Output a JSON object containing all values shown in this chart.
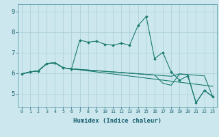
{
  "xlabel": "Humidex (Indice chaleur)",
  "bg_color": "#cce8ee",
  "grid_color": "#aacdd6",
  "line_color": "#1a7a6e",
  "x_ticks": [
    0,
    1,
    2,
    3,
    4,
    5,
    6,
    7,
    8,
    9,
    10,
    11,
    12,
    13,
    14,
    15,
    16,
    17,
    18,
    19,
    20,
    21,
    22,
    23
  ],
  "y_ticks": [
    5,
    6,
    7,
    8,
    9
  ],
  "xlim": [
    -0.5,
    23.5
  ],
  "ylim": [
    4.35,
    9.35
  ],
  "series_main": [
    5.95,
    6.05,
    6.1,
    6.45,
    6.5,
    6.25,
    6.2,
    7.6,
    7.5,
    7.55,
    7.4,
    7.35,
    7.45,
    7.35,
    8.3,
    8.75,
    6.7,
    7.0,
    6.05,
    5.65,
    5.85,
    4.55,
    5.15,
    4.85
  ],
  "series_line1": [
    5.95,
    6.05,
    6.1,
    6.45,
    6.5,
    6.25,
    6.2,
    6.15,
    6.1,
    6.05,
    6.0,
    5.95,
    5.9,
    5.85,
    5.8,
    5.75,
    5.7,
    5.65,
    5.6,
    5.55,
    5.5,
    5.45,
    5.4,
    5.35
  ],
  "series_line2": [
    5.95,
    6.05,
    6.1,
    6.45,
    6.5,
    6.25,
    6.2,
    6.17,
    6.14,
    6.11,
    6.08,
    6.05,
    6.02,
    5.99,
    5.96,
    5.93,
    5.9,
    5.87,
    5.84,
    5.95,
    5.92,
    5.89,
    5.86,
    4.85
  ],
  "series_line3": [
    5.95,
    6.05,
    6.1,
    6.45,
    6.5,
    6.25,
    6.2,
    6.17,
    6.14,
    6.11,
    6.08,
    6.05,
    6.02,
    5.99,
    5.96,
    5.93,
    5.9,
    5.5,
    5.4,
    5.95,
    5.92,
    4.55,
    5.15,
    4.85
  ]
}
